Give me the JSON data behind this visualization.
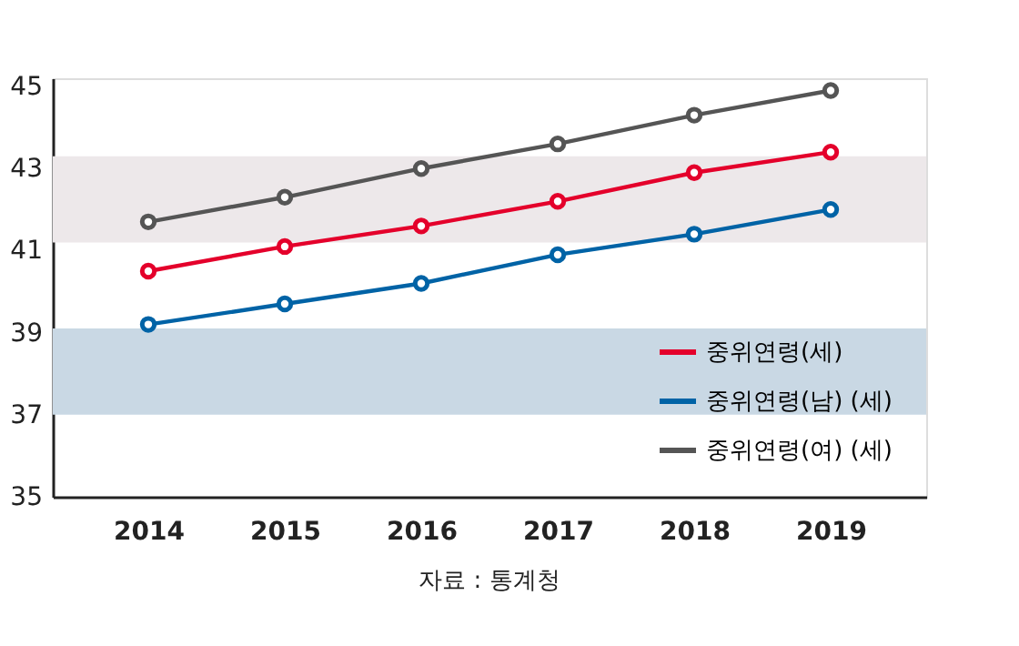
{
  "chart_data": {
    "type": "line",
    "categories": [
      "2014",
      "2015",
      "2016",
      "2017",
      "2018",
      "2019"
    ],
    "series": [
      {
        "name": "중위연령(세)",
        "color": "#e4002b",
        "values": [
          40.5,
          41.1,
          41.6,
          42.2,
          42.9,
          43.4
        ]
      },
      {
        "name": "중위연령(남) (세)",
        "color": "#0063a6",
        "values": [
          39.2,
          39.7,
          40.2,
          40.9,
          41.4,
          42.0
        ]
      },
      {
        "name": "중위연령(여) (세)",
        "color": "#555555",
        "values": [
          41.7,
          42.3,
          43.0,
          43.6,
          44.3,
          44.9
        ]
      }
    ],
    "ylim": [
      35,
      45.2
    ],
    "yticks": [
      35,
      37,
      39,
      41,
      43,
      45
    ],
    "bands": [
      {
        "axis": "y",
        "from": 41.2,
        "to": 43.3,
        "color": "#ede8ea"
      },
      {
        "axis": "y",
        "from": 37.0,
        "to": 39.1,
        "color": "#c9d8e4"
      }
    ],
    "annotations": [
      "자료 : 통계청"
    ],
    "grid": false,
    "legend": "bottom right",
    "marker": "circle",
    "line_style": "solid"
  }
}
